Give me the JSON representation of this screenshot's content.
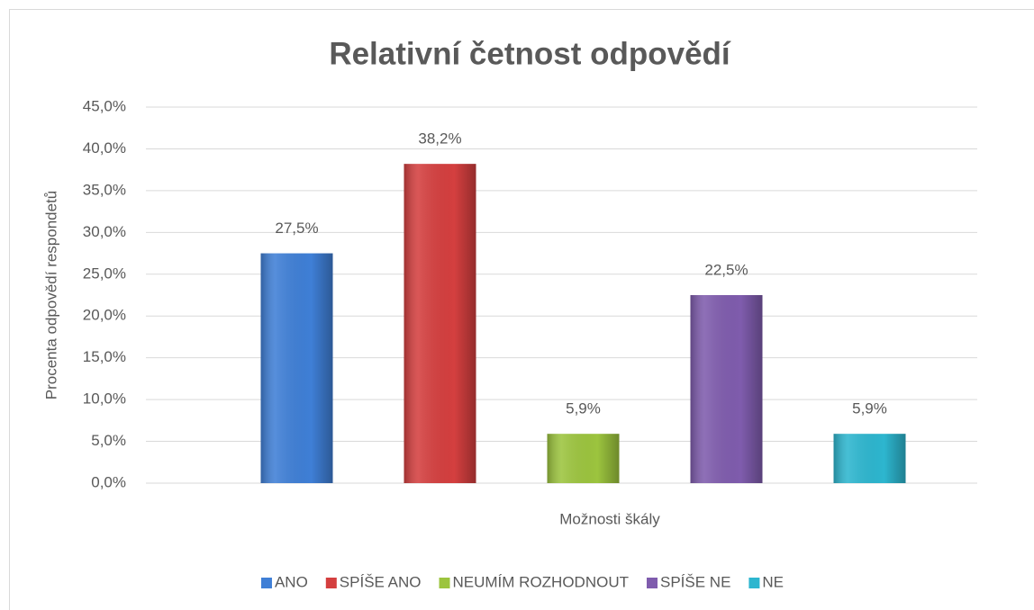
{
  "chart_data": {
    "type": "bar",
    "title": "Relativní četnost odpovědí",
    "y_label": "Procenta odpovědí respondetů",
    "x_label": "Možnosti škály",
    "categories": [
      "ANO",
      "SPÍŠE ANO",
      "NEUMÍM ROZHODNOUT",
      "SPÍŠE NE",
      "NE"
    ],
    "values": [
      27.5,
      38.2,
      5.9,
      22.5,
      5.9
    ],
    "value_labels": [
      "27,5%",
      "38,2%",
      "5,9%",
      "22,5%",
      "5,9%"
    ],
    "colors": [
      "#3f7fd6",
      "#d43f3f",
      "#9cc43e",
      "#7f5cad",
      "#2db6cf"
    ],
    "ylim": [
      0,
      45
    ],
    "yticks": [
      {
        "value": 0,
        "label": "0,0%"
      },
      {
        "value": 5,
        "label": "5,0%"
      },
      {
        "value": 10,
        "label": "10,0%"
      },
      {
        "value": 15,
        "label": "15,0%"
      },
      {
        "value": 20,
        "label": "20,0%"
      },
      {
        "value": 25,
        "label": "25,0%"
      },
      {
        "value": 30,
        "label": "30,0%"
      },
      {
        "value": 35,
        "label": "35,0%"
      },
      {
        "value": 40,
        "label": "40,0%"
      },
      {
        "value": 45,
        "label": "45,0%"
      }
    ],
    "grid": true,
    "legend": "bottom"
  }
}
